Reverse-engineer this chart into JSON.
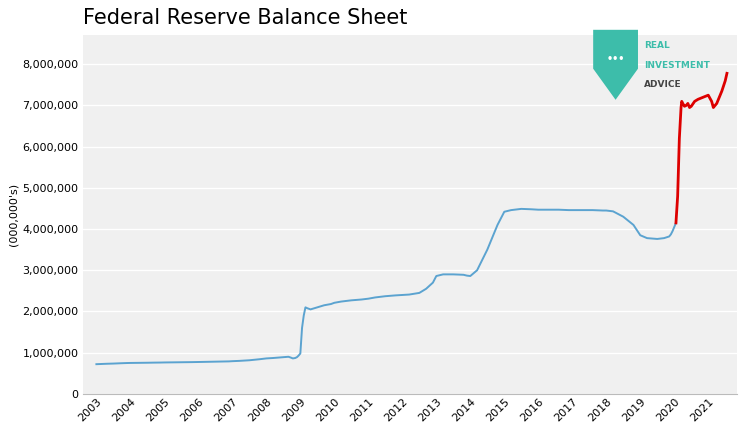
{
  "title": "Federal Reserve Balance Sheet",
  "ylabel": "(000,000's)",
  "background_color": "#ffffff",
  "plot_bg_color": "#f0f0f0",
  "blue_color": "#5ba3d0",
  "red_color": "#dd0000",
  "grid_color": "#ffffff",
  "title_fontsize": 15,
  "axis_fontsize": 8,
  "ylim": [
    0,
    8700000
  ],
  "yticks": [
    0,
    1000000,
    2000000,
    3000000,
    4000000,
    5000000,
    6000000,
    7000000,
    8000000
  ],
  "blue_data": {
    "years": [
      2003.0,
      2003.15,
      2003.3,
      2003.5,
      2003.7,
      2003.9,
      2004.0,
      2004.2,
      2004.5,
      2004.7,
      2004.9,
      2005.0,
      2005.2,
      2005.5,
      2005.8,
      2006.0,
      2006.3,
      2006.6,
      2006.9,
      2007.0,
      2007.2,
      2007.5,
      2007.8,
      2008.0,
      2008.2,
      2008.5,
      2008.65,
      2008.72,
      2008.78,
      2008.85,
      2008.9,
      2008.95,
      2009.0,
      2009.05,
      2009.1,
      2009.15,
      2009.2,
      2009.3,
      2009.5,
      2009.7,
      2009.9,
      2010.0,
      2010.2,
      2010.5,
      2010.8,
      2011.0,
      2011.2,
      2011.5,
      2011.8,
      2012.0,
      2012.2,
      2012.5,
      2012.7,
      2012.9,
      2013.0,
      2013.2,
      2013.5,
      2013.8,
      2013.9,
      2014.0,
      2014.2,
      2014.5,
      2014.8,
      2015.0,
      2015.2,
      2015.5,
      2015.8,
      2016.0,
      2016.3,
      2016.6,
      2016.9,
      2017.0,
      2017.3,
      2017.6,
      2017.9,
      2018.0,
      2018.2,
      2018.5,
      2018.8,
      2019.0,
      2019.2,
      2019.5,
      2019.7,
      2019.85,
      2019.9,
      2019.95,
      2020.0,
      2020.05
    ],
    "values": [
      720000,
      725000,
      730000,
      735000,
      742000,
      748000,
      750000,
      752000,
      755000,
      758000,
      760000,
      762000,
      764000,
      767000,
      770000,
      773000,
      778000,
      783000,
      788000,
      793000,
      800000,
      815000,
      840000,
      860000,
      870000,
      890000,
      900000,
      880000,
      860000,
      870000,
      890000,
      930000,
      980000,
      1600000,
      1900000,
      2100000,
      2080000,
      2050000,
      2100000,
      2150000,
      2180000,
      2210000,
      2240000,
      2270000,
      2290000,
      2310000,
      2340000,
      2370000,
      2390000,
      2400000,
      2410000,
      2450000,
      2550000,
      2700000,
      2860000,
      2900000,
      2900000,
      2890000,
      2870000,
      2860000,
      3000000,
      3500000,
      4100000,
      4420000,
      4460000,
      4490000,
      4480000,
      4470000,
      4470000,
      4470000,
      4460000,
      4460000,
      4460000,
      4460000,
      4450000,
      4450000,
      4430000,
      4300000,
      4100000,
      3850000,
      3780000,
      3760000,
      3780000,
      3820000,
      3870000,
      3950000,
      4050000,
      4150000
    ]
  },
  "red_data": {
    "years": [
      2020.05,
      2020.1,
      2020.15,
      2020.2,
      2020.22,
      2020.25,
      2020.3,
      2020.35,
      2020.4,
      2020.45,
      2020.5,
      2020.6,
      2020.7,
      2020.85,
      2021.0,
      2021.1,
      2021.15,
      2021.2,
      2021.25,
      2021.3,
      2021.4,
      2021.5,
      2021.55
    ],
    "values": [
      4150000,
      4800000,
      6200000,
      6950000,
      7100000,
      7050000,
      6980000,
      7000000,
      7050000,
      6950000,
      6980000,
      7100000,
      7150000,
      7200000,
      7250000,
      7100000,
      6950000,
      7000000,
      7050000,
      7150000,
      7350000,
      7600000,
      7780000
    ]
  },
  "xtick_years": [
    2003,
    2004,
    2005,
    2006,
    2007,
    2008,
    2009,
    2010,
    2011,
    2012,
    2013,
    2014,
    2015,
    2016,
    2017,
    2018,
    2019,
    2020,
    2021
  ],
  "logo_shield_color": "#3dbdaa",
  "logo_text_color": "#3dbdaa",
  "logo_label_color": "#444444"
}
